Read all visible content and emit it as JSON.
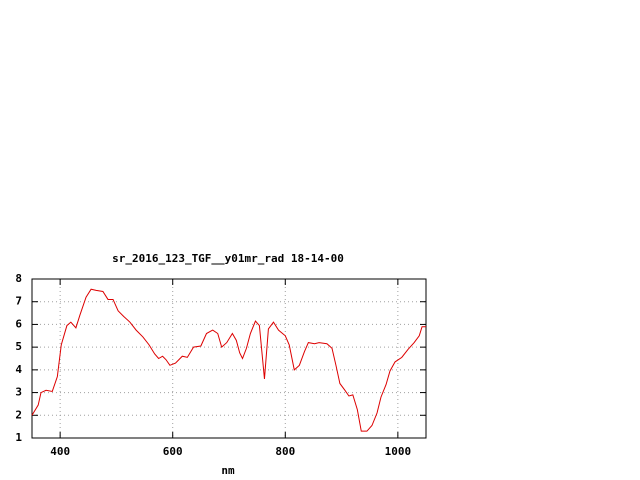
{
  "chart_data": {
    "type": "line",
    "title": "sr_2016_123_TGF__y01mr_rad 18-14-00",
    "xlabel": "nm",
    "x": [
      350,
      361,
      366,
      375,
      386,
      395,
      402,
      412,
      419,
      428,
      435,
      446,
      455,
      464,
      476,
      485,
      494,
      503,
      513,
      524,
      535,
      547,
      558,
      568,
      575,
      582,
      588,
      595,
      605,
      617,
      626,
      637,
      650,
      660,
      671,
      680,
      687,
      696,
      706,
      713,
      719,
      724,
      731,
      738,
      747,
      754,
      763,
      770,
      779,
      788,
      800,
      807,
      816,
      825,
      834,
      841,
      852,
      860,
      874,
      883,
      890,
      897,
      906,
      913,
      920,
      928,
      935,
      945,
      954,
      963,
      970,
      979,
      986,
      995,
      1007,
      1018,
      1029,
      1038,
      1043,
      1050
    ],
    "values": [
      2.0,
      2.45,
      3.0,
      3.1,
      3.05,
      3.7,
      5.1,
      5.95,
      6.1,
      5.85,
      6.4,
      7.2,
      7.55,
      7.5,
      7.45,
      7.1,
      7.1,
      6.6,
      6.35,
      6.1,
      5.75,
      5.45,
      5.1,
      4.7,
      4.5,
      4.6,
      4.45,
      4.2,
      4.3,
      4.6,
      4.55,
      5.0,
      5.05,
      5.6,
      5.75,
      5.6,
      5.0,
      5.2,
      5.6,
      5.3,
      4.75,
      4.5,
      4.95,
      5.6,
      6.15,
      5.95,
      3.6,
      5.8,
      6.1,
      5.75,
      5.5,
      5.1,
      4.0,
      4.2,
      4.8,
      5.2,
      5.15,
      5.2,
      5.15,
      4.95,
      4.2,
      3.4,
      3.1,
      2.85,
      2.9,
      2.25,
      1.3,
      1.3,
      1.55,
      2.1,
      2.8,
      3.35,
      3.95,
      4.35,
      4.55,
      4.9,
      5.2,
      5.5,
      5.9,
      5.9
    ],
    "color": "#dd0000",
    "xlim": [
      350,
      1050
    ],
    "ylim": [
      1,
      8
    ],
    "xticks": [
      400,
      600,
      800,
      1000
    ],
    "yticks": [
      1,
      2,
      3,
      4,
      5,
      6,
      7,
      8
    ],
    "grid": true
  }
}
